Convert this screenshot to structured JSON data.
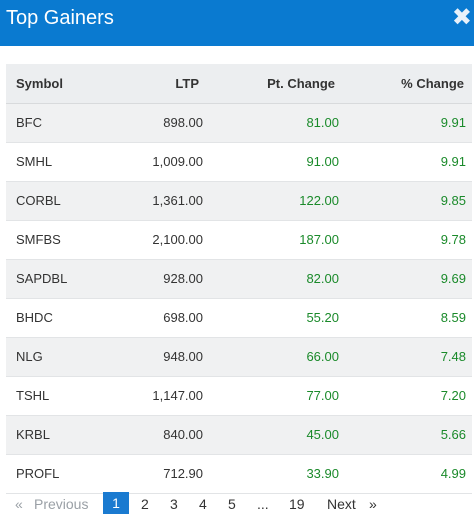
{
  "header": {
    "title": "Top Gainers",
    "close_glyph": "✖"
  },
  "table": {
    "columns": [
      "Symbol",
      "LTP",
      "Pt. Change",
      "% Change"
    ],
    "rows": [
      {
        "symbol": "BFC",
        "ltp": "898.00",
        "pt_change": "81.00",
        "pct_change": "9.91"
      },
      {
        "symbol": "SMHL",
        "ltp": "1,009.00",
        "pt_change": "91.00",
        "pct_change": "9.91"
      },
      {
        "symbol": "CORBL",
        "ltp": "1,361.00",
        "pt_change": "122.00",
        "pct_change": "9.85"
      },
      {
        "symbol": "SMFBS",
        "ltp": "2,100.00",
        "pt_change": "187.00",
        "pct_change": "9.78"
      },
      {
        "symbol": "SAPDBL",
        "ltp": "928.00",
        "pt_change": "82.00",
        "pct_change": "9.69"
      },
      {
        "symbol": "BHDC",
        "ltp": "698.00",
        "pt_change": "55.20",
        "pct_change": "8.59"
      },
      {
        "symbol": "NLG",
        "ltp": "948.00",
        "pt_change": "66.00",
        "pct_change": "7.48"
      },
      {
        "symbol": "TSHL",
        "ltp": "1,147.00",
        "pt_change": "77.00",
        "pct_change": "7.20"
      },
      {
        "symbol": "KRBL",
        "ltp": "840.00",
        "pt_change": "45.00",
        "pct_change": "5.66"
      },
      {
        "symbol": "PROFL",
        "ltp": "712.90",
        "pt_change": "33.90",
        "pct_change": "4.99"
      }
    ]
  },
  "pagination": {
    "first_glyph": "«",
    "previous": "Previous",
    "pages": [
      "1",
      "2",
      "3",
      "4",
      "5"
    ],
    "ellipsis": "...",
    "last_page": "19",
    "next": "Next",
    "last_glyph": "»",
    "active_page": "1"
  },
  "colors": {
    "header_bg": "#0a7ad0",
    "gain": "#1a8a2a",
    "active_page": "#1a7ad0"
  }
}
